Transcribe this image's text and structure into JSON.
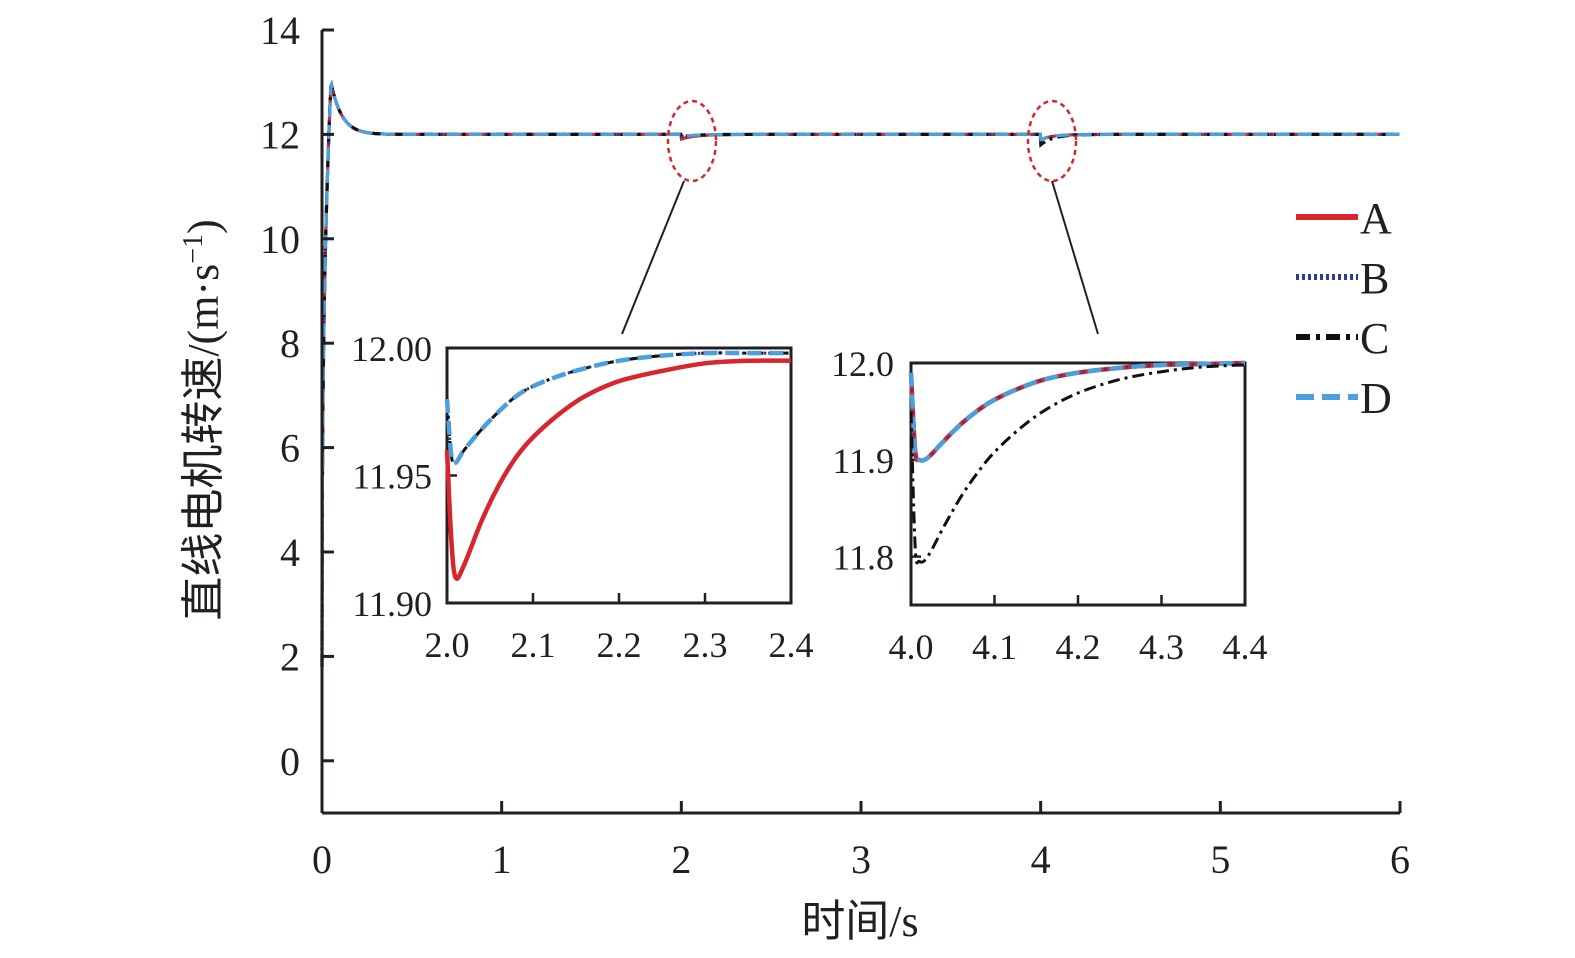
{
  "chart_data": {
    "type": "line",
    "xlabel": "时间/s",
    "ylabel": "直线电机转速/(m·s",
    "ylabel_sup": "−1",
    "ylabel_close": ")",
    "xlim": [
      0,
      6
    ],
    "ylim": [
      -1,
      14
    ],
    "xticks": [
      0,
      1,
      2,
      3,
      4,
      5,
      6
    ],
    "yticks": [
      0,
      2,
      4,
      6,
      8,
      10,
      12,
      14
    ],
    "grid": false,
    "legend_position": "right",
    "series": [
      {
        "name": "A",
        "color": "#d7262d",
        "style": "solid"
      },
      {
        "name": "B",
        "color": "#2e3d8f",
        "style": "dotted"
      },
      {
        "name": "C",
        "color": "#111111",
        "style": "dash-dot"
      },
      {
        "name": "D",
        "color": "#4a9fdc",
        "style": "dashed"
      }
    ],
    "main_curve": {
      "description": "all series overlap: rise from about 1.8 to peak 13.0 at t=0.05 s, settle to 12.0 by t=0.3 s",
      "peak": [
        0.05,
        13.0
      ],
      "steady": 12.0
    },
    "insets": [
      {
        "xlim": [
          2.0,
          2.4
        ],
        "ylim": [
          11.9,
          12.0
        ],
        "xticks": [
          "2.0",
          "2.1",
          "2.2",
          "2.3",
          "2.4"
        ],
        "yticks": [
          "11.90",
          "11.95",
          "12.00"
        ],
        "curves": [
          {
            "series": [
              "A"
            ],
            "x": [
              2.0,
              2.005,
              2.01,
              2.02,
              2.04,
              2.06,
              2.08,
              2.1,
              2.13,
              2.16,
              2.2,
              2.25,
              2.3,
              2.35,
              2.4
            ],
            "y": [
              11.96,
              11.925,
              11.91,
              11.915,
              11.932,
              11.946,
              11.957,
              11.965,
              11.974,
              11.981,
              11.987,
              11.991,
              11.994,
              11.995,
              11.995
            ]
          },
          {
            "series": [
              "B",
              "C",
              "D"
            ],
            "x": [
              2.0,
              2.005,
              2.01,
              2.02,
              2.04,
              2.06,
              2.08,
              2.1,
              2.13,
              2.16,
              2.2,
              2.25,
              2.3,
              2.35,
              2.4
            ],
            "y": [
              11.98,
              11.958,
              11.955,
              11.96,
              11.968,
              11.975,
              11.981,
              11.985,
              11.989,
              11.992,
              11.995,
              11.997,
              11.998,
              11.998,
              11.998
            ]
          }
        ]
      },
      {
        "xlim": [
          4.0,
          4.4
        ],
        "ylim": [
          11.75,
          12.0
        ],
        "xticks": [
          "4.0",
          "4.1",
          "4.2",
          "4.3",
          "4.4"
        ],
        "yticks": [
          "11.8",
          "11.9",
          "12.0"
        ],
        "curves": [
          {
            "series": [
              "A",
              "B",
              "D"
            ],
            "x": [
              4.0,
              4.005,
              4.01,
              4.02,
              4.04,
              4.06,
              4.08,
              4.1,
              4.13,
              4.16,
              4.2,
              4.25,
              4.3,
              4.35,
              4.4
            ],
            "y": [
              11.99,
              11.91,
              11.9,
              11.902,
              11.92,
              11.937,
              11.951,
              11.962,
              11.974,
              11.983,
              11.99,
              11.995,
              11.998,
              11.999,
              12.0
            ]
          },
          {
            "series": [
              "C"
            ],
            "x": [
              4.0,
              4.005,
              4.01,
              4.02,
              4.04,
              4.06,
              4.08,
              4.1,
              4.13,
              4.16,
              4.2,
              4.25,
              4.3,
              4.35,
              4.4
            ],
            "y": [
              11.95,
              11.81,
              11.795,
              11.8,
              11.832,
              11.862,
              11.887,
              11.908,
              11.932,
              11.951,
              11.969,
              11.983,
              11.991,
              11.996,
              11.998
            ]
          }
        ]
      }
    ]
  }
}
